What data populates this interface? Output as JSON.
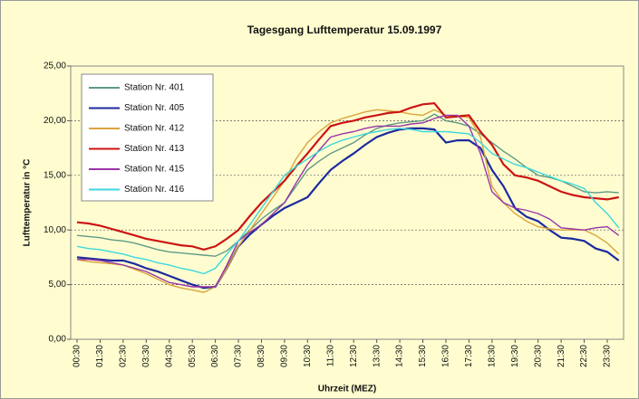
{
  "chart_data": {
    "type": "line",
    "title": "Tagesgang Lufttemperatur 15.09.1997",
    "x_label": "Uhrzeit (MEZ)",
    "y_label": "Lufttemperatur in °C",
    "categories": [
      "00:30",
      null,
      "01:30",
      null,
      "02:30",
      null,
      "03:30",
      null,
      "04:30",
      null,
      "05:30",
      null,
      "06:30",
      null,
      "07:30",
      null,
      "08:30",
      null,
      "09:30",
      null,
      "10:30",
      null,
      "11:30",
      null,
      "12:30",
      null,
      "13:30",
      null,
      "14:30",
      null,
      "15:30",
      null,
      "16:30",
      null,
      "17:30",
      null,
      "18:30",
      null,
      "19:30",
      null,
      "20:30",
      null,
      "21:30",
      null,
      "22:30",
      null,
      "23:30",
      null
    ],
    "ylim": [
      0,
      25
    ],
    "yticks": [
      {
        "value": 0,
        "label": "0,00"
      },
      {
        "value": 5,
        "label": "5,00"
      },
      {
        "value": 10,
        "label": "10,00"
      },
      {
        "value": 15,
        "label": "15,00"
      },
      {
        "value": 20,
        "label": "20,00"
      },
      {
        "value": 25,
        "label": "25,00"
      }
    ],
    "grid": true,
    "legend": "upper left",
    "series": [
      {
        "name": "Station Nr. 401",
        "color": "#5f9a84",
        "values": [
          9.5,
          9.4,
          9.3,
          9.1,
          9.0,
          8.8,
          8.5,
          8.2,
          8.0,
          7.9,
          7.8,
          7.7,
          7.6,
          8.1,
          9.0,
          10.0,
          11.0,
          11.8,
          12.5,
          14.0,
          15.5,
          16.3,
          17.0,
          17.5,
          18.0,
          18.7,
          19.3,
          19.6,
          19.8,
          19.9,
          20.0,
          20.6,
          20.0,
          19.8,
          19.5,
          18.8,
          18.0,
          17.2,
          16.5,
          15.7,
          15.0,
          14.8,
          14.5,
          14.0,
          13.5,
          13.4,
          13.5,
          13.4
        ]
      },
      {
        "name": "Station Nr. 405",
        "color": "#1c2a9e",
        "values": [
          7.5,
          7.4,
          7.3,
          7.2,
          7.2,
          6.9,
          6.5,
          6.2,
          5.8,
          5.4,
          5.0,
          4.7,
          4.8,
          6.5,
          8.5,
          9.6,
          10.5,
          11.3,
          12.0,
          12.5,
          13.0,
          14.3,
          15.5,
          16.3,
          17.0,
          17.8,
          18.5,
          18.9,
          19.2,
          19.3,
          19.3,
          19.2,
          18.0,
          18.2,
          18.2,
          17.5,
          15.5,
          14.0,
          12.0,
          11.2,
          10.8,
          10.0,
          9.3,
          9.2,
          9.0,
          8.3,
          8.0,
          7.2
        ]
      },
      {
        "name": "Station Nr. 412",
        "color": "#d9a43c",
        "values": [
          7.3,
          7.1,
          7.0,
          6.9,
          6.8,
          6.4,
          6.0,
          5.5,
          5.0,
          4.7,
          4.5,
          4.3,
          4.8,
          6.5,
          8.5,
          10.0,
          11.5,
          13.0,
          14.5,
          16.5,
          18.0,
          19.0,
          19.8,
          20.2,
          20.5,
          20.8,
          21.0,
          20.9,
          20.8,
          20.6,
          20.5,
          21.0,
          20.5,
          20.4,
          20.3,
          18.5,
          14.0,
          12.5,
          11.5,
          10.8,
          10.3,
          10.1,
          10.0,
          10.0,
          10.0,
          9.5,
          8.8,
          7.8
        ]
      },
      {
        "name": "Station Nr. 413",
        "color": "#cc1414",
        "values": [
          10.7,
          10.6,
          10.4,
          10.1,
          9.8,
          9.5,
          9.2,
          9.0,
          8.8,
          8.6,
          8.5,
          8.2,
          8.5,
          9.2,
          10.0,
          11.3,
          12.5,
          13.5,
          14.5,
          15.8,
          17.0,
          18.3,
          19.5,
          19.8,
          20.0,
          20.3,
          20.5,
          20.7,
          20.8,
          21.2,
          21.5,
          21.6,
          20.3,
          20.4,
          20.5,
          19.0,
          17.8,
          16.0,
          15.0,
          14.8,
          14.5,
          14.0,
          13.5,
          13.2,
          13.0,
          12.9,
          12.8,
          13.0
        ]
      },
      {
        "name": "Station Nr. 415",
        "color": "#9a35a8",
        "values": [
          7.3,
          7.3,
          7.2,
          7.0,
          6.8,
          6.5,
          6.2,
          5.7,
          5.2,
          5.0,
          4.8,
          4.8,
          4.8,
          6.8,
          9.0,
          9.8,
          10.5,
          11.5,
          12.5,
          14.3,
          16.0,
          17.3,
          18.5,
          18.8,
          19.0,
          19.3,
          19.5,
          19.5,
          19.5,
          19.7,
          19.8,
          20.2,
          20.5,
          20.5,
          19.5,
          17.0,
          13.5,
          12.5,
          12.0,
          11.8,
          11.5,
          11.0,
          10.2,
          10.1,
          10.0,
          10.2,
          10.3,
          9.5
        ]
      },
      {
        "name": "Station Nr. 416",
        "color": "#3cd8dc",
        "values": [
          8.5,
          8.3,
          8.2,
          8.0,
          7.8,
          7.5,
          7.3,
          7.0,
          6.8,
          6.5,
          6.3,
          6.0,
          6.5,
          7.8,
          9.0,
          10.5,
          12.0,
          13.5,
          15.0,
          15.8,
          16.5,
          17.2,
          17.8,
          18.2,
          18.5,
          18.8,
          19.0,
          19.2,
          19.3,
          19.2,
          19.0,
          19.0,
          19.0,
          18.9,
          18.8,
          18.0,
          17.0,
          16.5,
          16.0,
          15.7,
          15.3,
          14.9,
          14.5,
          14.2,
          13.8,
          12.5,
          11.5,
          10.2
        ]
      }
    ]
  }
}
